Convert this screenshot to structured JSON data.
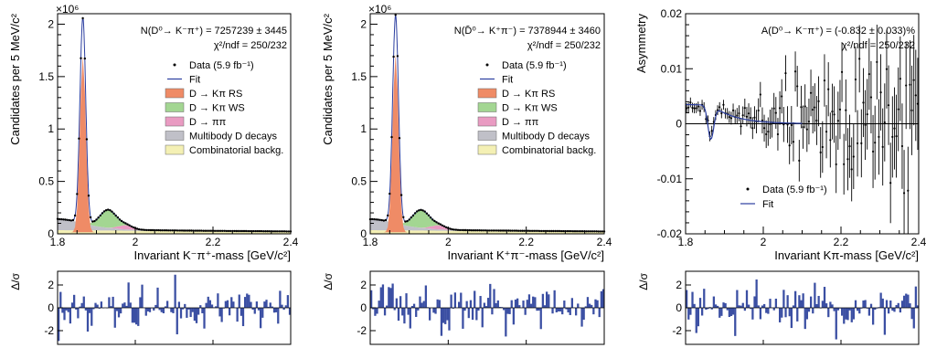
{
  "chart_data": [
    {
      "id": "kpi",
      "type": "line",
      "title": "",
      "exponent_label": "×10⁶",
      "ylabel": "Candidates per 5 MeV/c²",
      "xlabel": "Invariant K⁻π⁺-mass [GeV/c²]",
      "xlim": [
        1.8,
        2.4
      ],
      "ylim": [
        0,
        2.1
      ],
      "x_ticks": [
        1.8,
        2,
        2.2,
        2.4
      ],
      "x_tick_labels": [
        "1.8",
        "2",
        "2.2",
        "2.4"
      ],
      "y_ticks": [
        0,
        0.5,
        1,
        1.5,
        2
      ],
      "y_tick_labels": [
        "0",
        "0.5",
        "1",
        "1.5",
        "2"
      ],
      "annotation_lines": [
        "N(D⁰→ K⁻π⁺) = 7257239 ± 3445",
        "χ²/ndf = 250/232"
      ],
      "legend": {
        "placement": "right",
        "entries": [
          {
            "label": "Data (5.9 fb⁻¹)",
            "kind": "marker",
            "color": "#000000"
          },
          {
            "label": "Fit",
            "kind": "line",
            "color": "#2b3ea0"
          },
          {
            "label": "D → Kπ RS",
            "kind": "fill",
            "color": "#ef8b66"
          },
          {
            "label": "D → Kπ WS",
            "kind": "fill",
            "color": "#a3d692"
          },
          {
            "label": "D → ππ",
            "kind": "fill",
            "color": "#e99bc2"
          },
          {
            "label": "Multibody D decays",
            "kind": "fill",
            "color": "#c0c0c8"
          },
          {
            "label": "Combinatorial backg.",
            "kind": "fill",
            "color": "#f4f0b4"
          }
        ]
      },
      "model": {
        "peak_mean": 1.865,
        "peak_amp": 1.68,
        "peak_sigma": 0.0075,
        "total_amp": 1.96,
        "combinatorial_level": 0.035,
        "ws_amp": 0.17,
        "ws_center": 1.93,
        "ws_width": 0.03
      }
    },
    {
      "id": "kpi_bar",
      "type": "line",
      "title": "",
      "exponent_label": "×10⁶",
      "ylabel": "Candidates per 5 MeV/c²",
      "xlabel": "Invariant K⁺π⁻-mass [GeV/c²]",
      "xlim": [
        1.8,
        2.4
      ],
      "ylim": [
        0,
        2.1
      ],
      "x_ticks": [
        1.8,
        2,
        2.2,
        2.4
      ],
      "x_tick_labels": [
        "1.8",
        "2",
        "2.2",
        "2.4"
      ],
      "y_ticks": [
        0,
        0.5,
        1,
        1.5,
        2
      ],
      "y_tick_labels": [
        "0",
        "0.5",
        "1",
        "1.5",
        "2"
      ],
      "annotation_lines": [
        "N(D̄⁰→ K⁺π⁻) = 7378944 ± 3460",
        "χ²/ndf = 250/232"
      ],
      "legend": {
        "placement": "right",
        "entries": [
          {
            "label": "Data (5.9 fb⁻¹)",
            "kind": "marker",
            "color": "#000000"
          },
          {
            "label": "Fit",
            "kind": "line",
            "color": "#2b3ea0"
          },
          {
            "label": "D → Kπ RS",
            "kind": "fill",
            "color": "#ef8b66"
          },
          {
            "label": "D → Kπ WS",
            "kind": "fill",
            "color": "#a3d692"
          },
          {
            "label": "D → ππ",
            "kind": "fill",
            "color": "#e99bc2"
          },
          {
            "label": "Multibody D decays",
            "kind": "fill",
            "color": "#c0c0c8"
          },
          {
            "label": "Combinatorial backg.",
            "kind": "fill",
            "color": "#f4f0b4"
          }
        ]
      },
      "model": {
        "peak_mean": 1.865,
        "peak_amp": 1.7,
        "peak_sigma": 0.0075,
        "total_amp": 1.98,
        "combinatorial_level": 0.035,
        "ws_amp": 0.17,
        "ws_center": 1.93,
        "ws_width": 0.03
      }
    },
    {
      "id": "asym",
      "type": "scatter",
      "title": "",
      "ylabel": "Asymmetry",
      "xlabel": "Invariant Kπ-mass [GeV/c²]",
      "xlim": [
        1.8,
        2.4
      ],
      "ylim": [
        -0.02,
        0.02
      ],
      "x_ticks": [
        1.8,
        2,
        2.2,
        2.4
      ],
      "x_tick_labels": [
        "1.8",
        "2",
        "2.2",
        "2.4"
      ],
      "y_ticks": [
        -0.02,
        -0.01,
        0,
        0.01,
        0.02
      ],
      "y_tick_labels": [
        "-0.02",
        "-0.01",
        "0",
        "0.01",
        "0.02"
      ],
      "annotation_lines": [
        "A(D⁰→ K⁻π⁺) = (-0.832 ± 0.033)%",
        "χ²/ndf = 250/232"
      ],
      "legend": {
        "placement": "lower-left",
        "entries": [
          {
            "label": "Data (5.9 fb⁻¹)",
            "kind": "marker",
            "color": "#000000"
          },
          {
            "label": "Fit",
            "kind": "line",
            "color": "#2b3ea0"
          }
        ]
      },
      "model": {
        "dip_center": 1.865,
        "dip_depth": -0.0062,
        "dip_sigma": 0.0075,
        "pre_level": 0.0035,
        "tail_level": 0.001
      }
    }
  ],
  "pull_panels": [
    {
      "id": "pull_kpi",
      "ylabel": "Δ/σ",
      "ylim": [
        -3.2,
        3.2
      ],
      "y_ticks": [
        -2,
        0,
        2
      ],
      "y_tick_labels": [
        "-2",
        "0",
        "2"
      ],
      "bar_color": "#3b4fa3",
      "seed": 11
    },
    {
      "id": "pull_kpi_bar",
      "ylabel": "Δ/σ",
      "ylim": [
        -3.2,
        3.2
      ],
      "y_ticks": [
        -2,
        0,
        2
      ],
      "y_tick_labels": [
        "-2",
        "0",
        "2"
      ],
      "bar_color": "#3b4fa3",
      "seed": 29
    },
    {
      "id": "pull_asym",
      "ylabel": "Δ/σ",
      "ylim": [
        -3.2,
        3.2
      ],
      "y_ticks": [
        -2,
        0,
        2
      ],
      "y_tick_labels": [
        "-2",
        "0",
        "2"
      ],
      "bar_color": "#3b4fa3",
      "seed": 47
    }
  ]
}
